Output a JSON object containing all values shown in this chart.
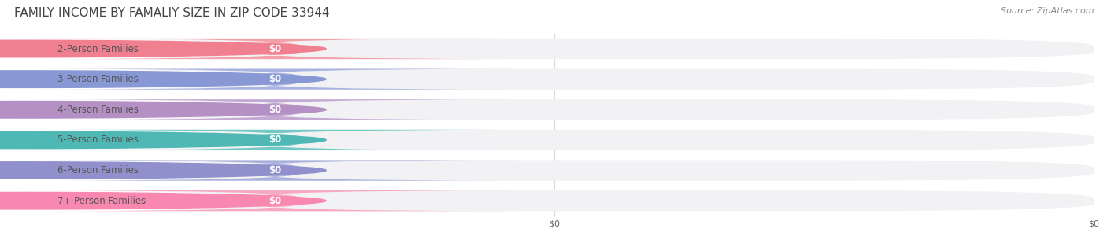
{
  "title": "FAMILY INCOME BY FAMALIY SIZE IN ZIP CODE 33944",
  "source": "Source: ZipAtlas.com",
  "categories": [
    "2-Person Families",
    "3-Person Families",
    "4-Person Families",
    "5-Person Families",
    "6-Person Families",
    "7+ Person Families"
  ],
  "values": [
    0,
    0,
    0,
    0,
    0,
    0
  ],
  "bar_colors": [
    "#f4a0a8",
    "#a8b4e0",
    "#c4a8d4",
    "#74c8c4",
    "#a8b0dc",
    "#f8a8c0"
  ],
  "circle_colors": [
    "#f08090",
    "#8898d4",
    "#b490c4",
    "#50b8b4",
    "#9090cc",
    "#f888b0"
  ],
  "label_color": "#555555",
  "value_label_color": "#ffffff",
  "background_color": "#ffffff",
  "bar_bg_color": "#f2f2f4",
  "grid_color": "#d8d8e0",
  "title_fontsize": 11,
  "label_fontsize": 8.5,
  "value_fontsize": 8.5,
  "source_fontsize": 8,
  "tick_fontsize": 8,
  "xticks": [
    0.5,
    1.0
  ],
  "xtick_labels": [
    "$0",
    "$0"
  ]
}
